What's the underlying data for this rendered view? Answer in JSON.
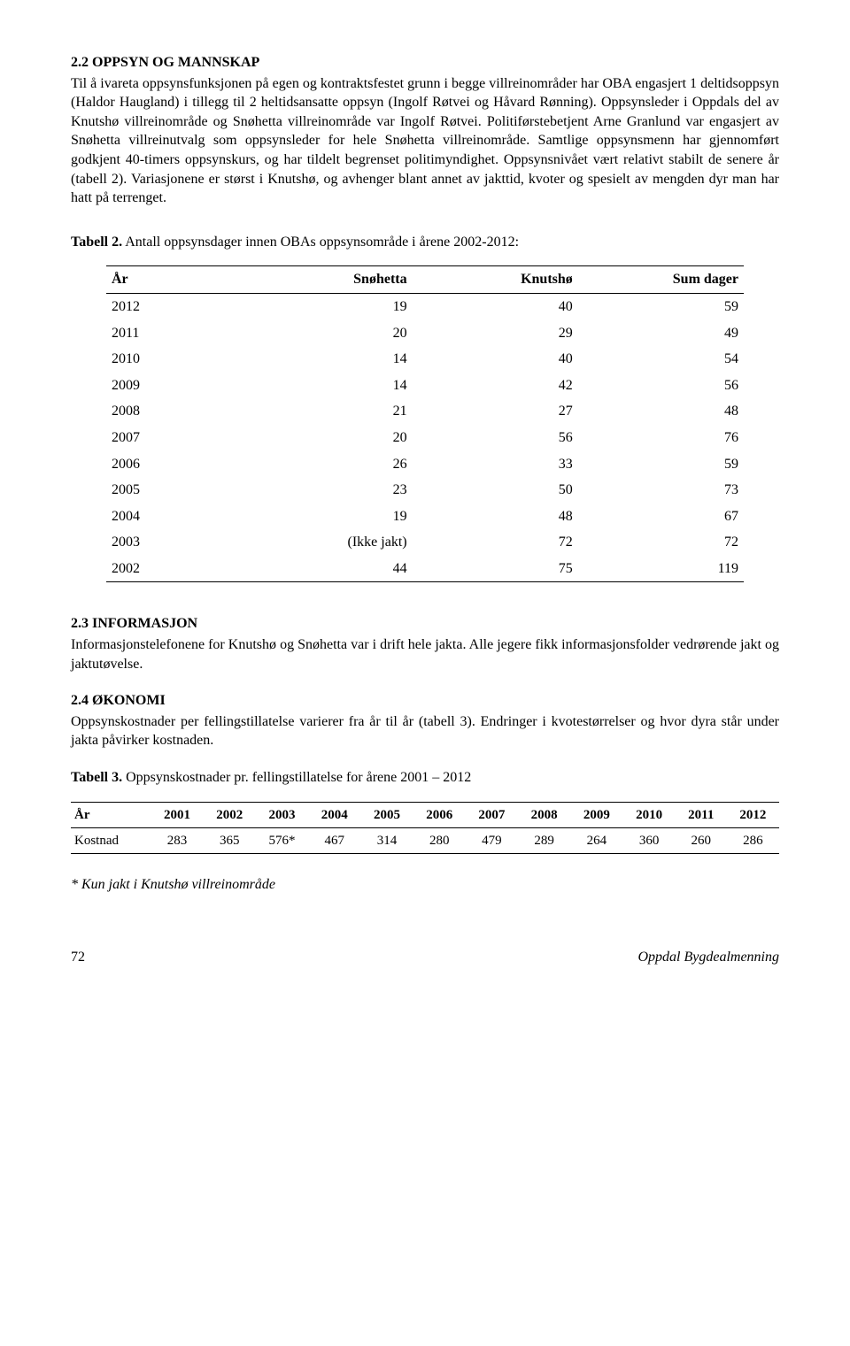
{
  "section22": {
    "heading": "2.2 OPPSYN OG MANNSKAP",
    "body": "Til å ivareta oppsynsfunksjonen på egen og kontraktsfestet grunn i begge villreinområder har OBA engasjert 1 deltidsoppsyn (Haldor Haugland) i tillegg til 2 heltidsansatte oppsyn (Ingolf Røtvei og Håvard Rønning). Oppsynsleder i Oppdals del av Knutshø villreinområde og Snøhetta villreinområde var Ingolf Røtvei. Politiførstebetjent Arne Granlund var engasjert av Snøhetta villreinutvalg som oppsynsleder for hele Snøhetta villreinområde. Samtlige oppsynsmenn har gjennomført godkjent 40-timers oppsynskurs, og har tildelt begrenset politimyndighet. Oppsynsnivået vært relativt stabilt de senere år (tabell 2). Variasjonene er størst i Knutshø, og avhenger blant annet av jakttid, kvoter og spesielt av mengden dyr man har hatt på terrenget."
  },
  "table2": {
    "caption_bold": "Tabell 2.",
    "caption_rest": " Antall oppsynsdager innen OBAs oppsynsområde i årene 2002-2012:",
    "headers": {
      "ar": "År",
      "sn": "Snøhetta",
      "kn": "Knutshø",
      "sum": "Sum dager"
    },
    "rows": [
      {
        "ar": "2012",
        "sn": "19",
        "kn": "40",
        "sum": "59"
      },
      {
        "ar": "2011",
        "sn": "20",
        "kn": "29",
        "sum": "49"
      },
      {
        "ar": "2010",
        "sn": "14",
        "kn": "40",
        "sum": "54"
      },
      {
        "ar": "2009",
        "sn": "14",
        "kn": "42",
        "sum": "56"
      },
      {
        "ar": "2008",
        "sn": "21",
        "kn": "27",
        "sum": "48"
      },
      {
        "ar": "2007",
        "sn": "20",
        "kn": "56",
        "sum": "76"
      },
      {
        "ar": "2006",
        "sn": "26",
        "kn": "33",
        "sum": "59"
      },
      {
        "ar": "2005",
        "sn": "23",
        "kn": "50",
        "sum": "73"
      },
      {
        "ar": "2004",
        "sn": "19",
        "kn": "48",
        "sum": "67"
      },
      {
        "ar": "2003",
        "sn": "(Ikke jakt)",
        "kn": "72",
        "sum": "72"
      },
      {
        "ar": "2002",
        "sn": "44",
        "kn": "75",
        "sum": "119"
      }
    ]
  },
  "section23": {
    "heading": "2.3 INFORMASJON",
    "body": "Informasjonstelefonene for Knutshø og Snøhetta var i drift hele jakta. Alle jegere fikk informasjonsfolder vedrørende jakt og jaktutøvelse."
  },
  "section24": {
    "heading": "2.4 ØKONOMI",
    "body": "Oppsynskostnader per fellingstillatelse varierer fra år til år (tabell 3). Endringer i kvotestørrelser og hvor dyra står under jakta påvirker kostnaden."
  },
  "table3": {
    "caption_bold": "Tabell 3.",
    "caption_rest": " Oppsynskostnader pr. fellingstillatelse for årene 2001 – 2012",
    "header_row_label": "År",
    "data_row_label": "Kostnad",
    "years": [
      "2001",
      "2002",
      "2003",
      "2004",
      "2005",
      "2006",
      "2007",
      "2008",
      "2009",
      "2010",
      "2011",
      "2012"
    ],
    "values": [
      "283",
      "365",
      "576*",
      "467",
      "314",
      "280",
      "479",
      "289",
      "264",
      "360",
      "260",
      "286"
    ]
  },
  "footnote": "* Kun jakt i Knutshø villreinområde",
  "footer": {
    "page": "72",
    "org": "Oppdal Bygdealmenning"
  }
}
